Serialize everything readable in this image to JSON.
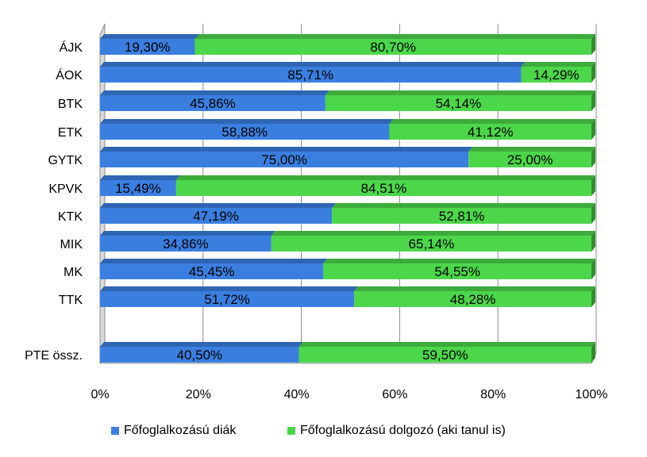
{
  "chart_data": {
    "type": "bar",
    "orientation": "horizontal",
    "stacked": "percent",
    "categories": [
      "ÁJK",
      "ÁOK",
      "BTK",
      "ETK",
      "GYTK",
      "KPVK",
      "KTK",
      "MIK",
      "MK",
      "TTK",
      "PTE össz."
    ],
    "series": [
      {
        "name": "Főfoglalkozású diák",
        "color": "#3a7fe0",
        "values": [
          19.3,
          85.71,
          45.86,
          58.88,
          75.0,
          15.49,
          47.19,
          34.86,
          45.45,
          51.72,
          40.5
        ],
        "labels": [
          "19,30%",
          "85,71%",
          "45,86%",
          "58,88%",
          "75,00%",
          "15,49%",
          "47,19%",
          "34,86%",
          "45,45%",
          "51,72%",
          "40,50%"
        ]
      },
      {
        "name": "Főfoglalkozású dolgozó (aki tanul is)",
        "color": "#4cd64a",
        "values": [
          80.7,
          14.29,
          54.14,
          41.12,
          25.0,
          84.51,
          52.81,
          65.14,
          54.55,
          48.28,
          59.5
        ],
        "labels": [
          "80,70%",
          "14,29%",
          "54,14%",
          "41,12%",
          "25,00%",
          "84,51%",
          "52,81%",
          "65,14%",
          "54,55%",
          "48,28%",
          "59,50%"
        ]
      }
    ],
    "x_ticks": [
      "0%",
      "20%",
      "40%",
      "60%",
      "80%",
      "100%"
    ],
    "xlim": [
      0,
      100
    ],
    "grid": true,
    "legend_position": "bottom",
    "style": "3d"
  }
}
